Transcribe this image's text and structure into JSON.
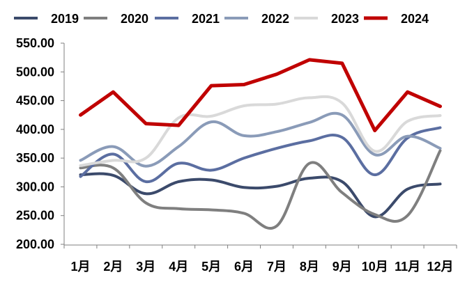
{
  "chart_data": {
    "type": "line",
    "title": "",
    "xlabel": "",
    "ylabel": "",
    "ylim": [
      200,
      550
    ],
    "yticks": [
      "200.00",
      "250.00",
      "300.00",
      "350.00",
      "400.00",
      "450.00",
      "500.00",
      "550.00"
    ],
    "categories": [
      "1月",
      "2月",
      "3月",
      "4月",
      "5月",
      "6月",
      "7月",
      "8月",
      "9月",
      "10月",
      "11月",
      "12月"
    ],
    "legend_position": "top",
    "series": [
      {
        "name": "2019",
        "color": "#3b4a6b",
        "width": 4,
        "values": [
          321,
          320,
          288,
          309,
          312,
          299,
          301,
          315,
          309,
          248,
          296,
          305
        ]
      },
      {
        "name": "2020",
        "color": "#7f7f7f",
        "width": 4,
        "values": [
          333,
          333,
          272,
          262,
          260,
          254,
          232,
          341,
          290,
          252,
          250,
          363
        ]
      },
      {
        "name": "2021",
        "color": "#5b6ea1",
        "width": 4,
        "values": [
          318,
          357,
          309,
          341,
          329,
          350,
          367,
          380,
          386,
          321,
          385,
          403
        ]
      },
      {
        "name": "2022",
        "color": "#8a9bb8",
        "width": 4,
        "values": [
          346,
          370,
          336,
          370,
          413,
          389,
          396,
          412,
          425,
          356,
          388,
          367
        ]
      },
      {
        "name": "2023",
        "color": "#d9d9d9",
        "width": 4,
        "values": [
          337,
          346,
          350,
          420,
          423,
          441,
          444,
          455,
          446,
          362,
          414,
          424
        ]
      },
      {
        "name": "2024",
        "color": "#c00000",
        "width": 5,
        "values": [
          425,
          465,
          410,
          407,
          476,
          478,
          496,
          521,
          515,
          398,
          465,
          440
        ]
      }
    ]
  }
}
